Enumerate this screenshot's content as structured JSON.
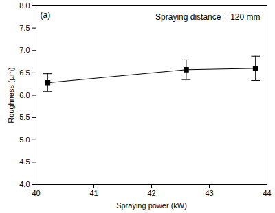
{
  "chart_data": {
    "type": "line",
    "x_label": "Spraying power (kW)",
    "y_label": "Roughness (µm)",
    "annotations": [
      "(a)",
      "Spraying distance = 120 mm"
    ],
    "x": [
      40.2,
      42.6,
      43.8
    ],
    "values": [
      6.28,
      6.57,
      6.6
    ],
    "errors": [
      0.2,
      0.22,
      0.27
    ],
    "color": "#000000",
    "marker": "square",
    "line_style": "solid",
    "xlim": [
      40,
      44
    ],
    "xticks": [
      40,
      41,
      42,
      43,
      44
    ],
    "ylim": [
      4,
      8
    ],
    "yticks": [
      {
        "value": 4,
        "label": "4.0"
      },
      4.5,
      {
        "value": 5,
        "label": "5.0"
      },
      5.5,
      {
        "value": 6,
        "label": "6.0"
      },
      6.5,
      {
        "value": 7,
        "label": "7.0"
      },
      7.5,
      {
        "value": 8,
        "label": "8.0"
      }
    ],
    "grid": false
  }
}
